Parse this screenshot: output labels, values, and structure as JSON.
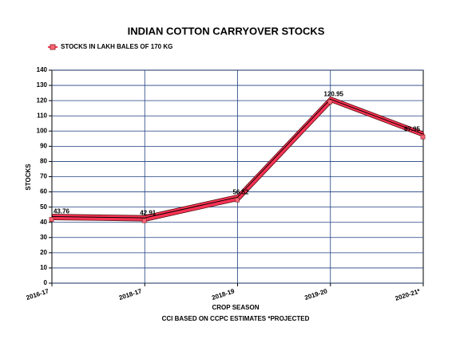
{
  "chart_data": {
    "type": "line",
    "title": "INDIAN COTTON CARRYOVER STOCKS",
    "x_label": "CROP SEASON",
    "y_label": "STOCKS",
    "note": "CCI  BASED ON CCPC ESTIMATES *PROJECTED",
    "categories": [
      "2016-17",
      "2018-17",
      "2018-19",
      "2019-20",
      "2020-21*"
    ],
    "series": [
      {
        "name": "STOCKS IN LAKH BALES OF 170 KG",
        "color": "#ff3355",
        "values": [
          43.76,
          42.91,
          56.52,
          120.95,
          97.95
        ]
      }
    ],
    "ylim": [
      0,
      140
    ],
    "yticks": [
      0,
      10,
      20,
      30,
      40,
      50,
      60,
      70,
      80,
      90,
      100,
      110,
      120,
      130,
      140
    ],
    "grid": true
  }
}
